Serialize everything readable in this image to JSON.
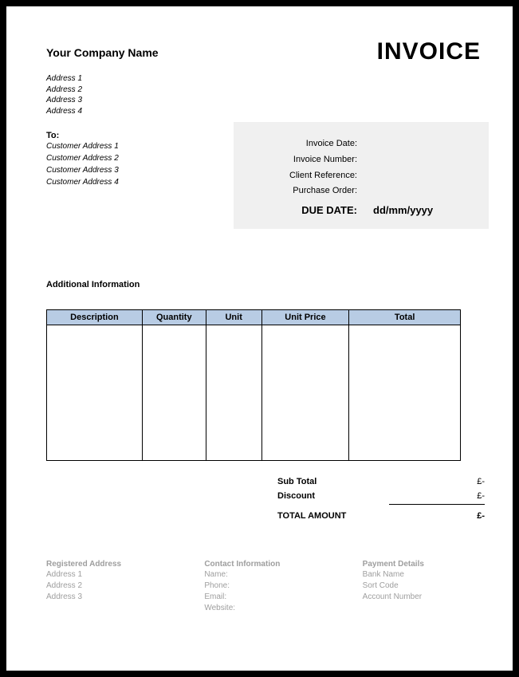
{
  "header": {
    "company_name": "Your Company Name",
    "invoice_title": "INVOICE",
    "company_address": [
      "Address 1",
      "Address 2",
      "Address 3",
      "Address 4"
    ],
    "to_label": "To:",
    "customer_address": [
      "Customer Address 1",
      "Customer Address 2",
      "Customer Address 3",
      "Customer Address 4"
    ]
  },
  "meta": {
    "rows": [
      {
        "label": "Invoice Date:",
        "value": ""
      },
      {
        "label": "Invoice Number:",
        "value": ""
      },
      {
        "label": "Client Reference:",
        "value": ""
      },
      {
        "label": "Purchase Order:",
        "value": ""
      }
    ],
    "due_label": "DUE DATE:",
    "due_value": "dd/mm/yyyy",
    "background_color": "#f0f0f0"
  },
  "additional_info_label": "Additional Information",
  "table": {
    "type": "table",
    "header_bg": "#b8cce4",
    "border_color": "#000000",
    "columns": [
      {
        "label": "Description",
        "width": 120
      },
      {
        "label": "Quantity",
        "width": 80
      },
      {
        "label": "Unit",
        "width": 70
      },
      {
        "label": "Unit Price",
        "width": 110
      },
      {
        "label": "Total",
        "width": 140
      }
    ],
    "rows": []
  },
  "totals": {
    "subtotal_label": "Sub Total",
    "subtotal_value": "£-",
    "discount_label": "Discount",
    "discount_value": "£-",
    "grand_label": "TOTAL AMOUNT",
    "grand_value": "£-"
  },
  "footer": {
    "text_color": "#9e9e9e",
    "registered": {
      "heading": "Registered Address",
      "lines": [
        "Address 1",
        "Address 2",
        "Address 3"
      ]
    },
    "contact": {
      "heading": "Contact Information",
      "lines": [
        "Name:",
        "Phone:",
        "Email:",
        "Website:"
      ]
    },
    "payment": {
      "heading": "Payment Details",
      "lines": [
        "Bank Name",
        "Sort Code",
        "Account Number"
      ]
    }
  }
}
